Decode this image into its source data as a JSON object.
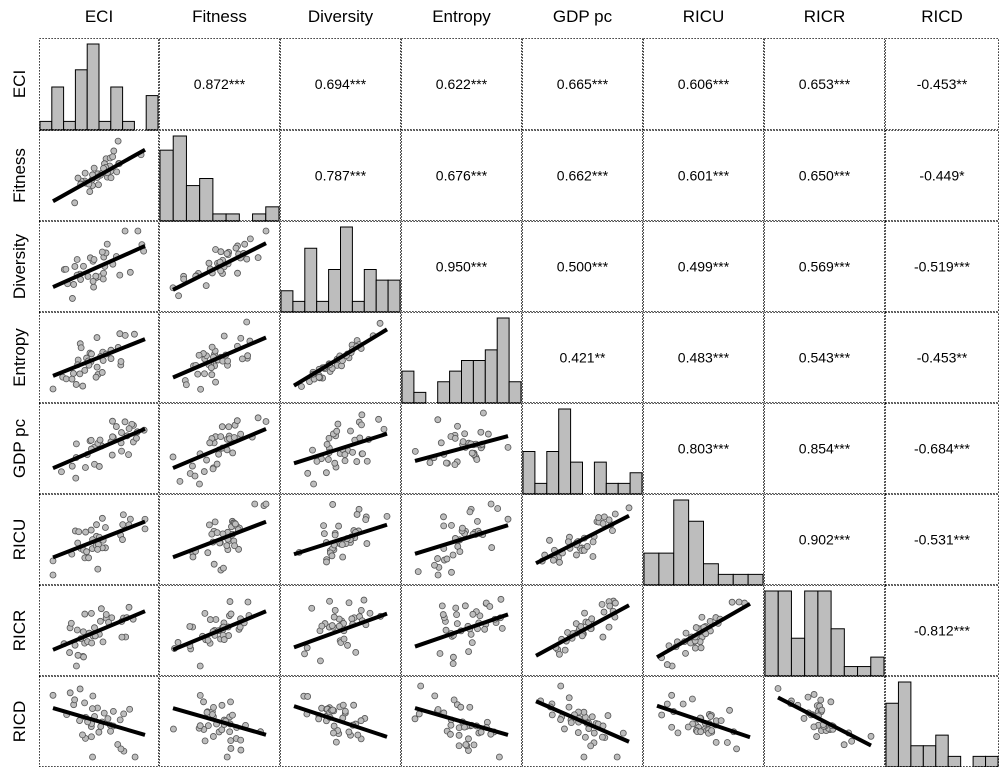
{
  "chart_data": {
    "type": "scatter-matrix",
    "variables": [
      "ECI",
      "Fitness",
      "Diversity",
      "Entropy",
      "GDP pc",
      "RICU",
      "RICR",
      "RICD"
    ],
    "correlations": [
      [
        "",
        "0.872***",
        "0.694***",
        "0.622***",
        "0.665***",
        "0.606***",
        "0.653***",
        "-0.453**"
      ],
      [
        "",
        "",
        "0.787***",
        "0.676***",
        "0.662***",
        "0.601***",
        "0.650***",
        "-0.449*"
      ],
      [
        "",
        "",
        "",
        "0.950***",
        "0.500***",
        "0.499***",
        "0.569***",
        "-0.519***"
      ],
      [
        "",
        "",
        "",
        "",
        "0.421**",
        "0.483***",
        "0.543***",
        "-0.453**"
      ],
      [
        "",
        "",
        "",
        "",
        "",
        "0.803***",
        "0.854***",
        "-0.684***"
      ],
      [
        "",
        "",
        "",
        "",
        "",
        "",
        "0.902***",
        "-0.531***"
      ],
      [
        "",
        "",
        "",
        "",
        "",
        "",
        "",
        "-0.812***"
      ],
      [
        "",
        "",
        "",
        "",
        "",
        "",
        "",
        ""
      ]
    ],
    "histograms": [
      [
        1,
        5,
        1,
        7,
        10,
        1,
        5,
        1,
        0,
        4
      ],
      [
        10,
        12,
        5,
        6,
        1,
        1,
        0,
        1,
        2
      ],
      [
        2,
        1,
        6,
        1,
        4,
        8,
        1,
        4,
        3,
        3
      ],
      [
        3,
        1,
        0,
        2,
        3,
        4,
        4,
        5,
        8,
        2
      ],
      [
        4,
        1,
        4,
        8,
        3,
        0,
        3,
        1,
        1,
        2
      ],
      [
        3,
        3,
        8,
        6,
        2,
        1,
        1,
        1
      ],
      [
        9,
        9,
        4,
        9,
        9,
        5,
        1,
        1,
        2
      ],
      [
        6,
        8,
        2,
        2,
        3,
        1,
        0,
        1,
        1
      ]
    ],
    "color_bars": "#bdbdbd",
    "color_points": "#bdbdbd",
    "color_fit_line": "#000000"
  }
}
